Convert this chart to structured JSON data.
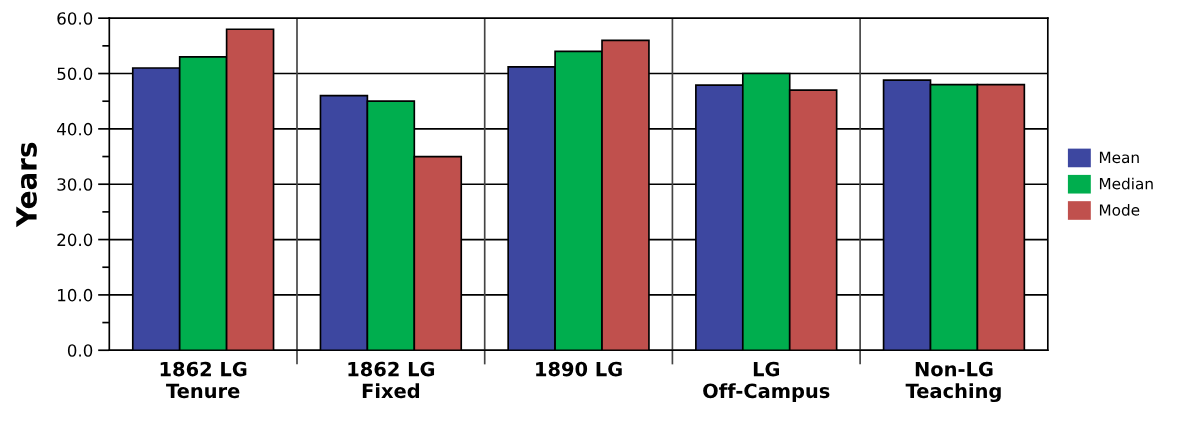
{
  "chart_data": {
    "type": "bar",
    "ylabel": "Years",
    "categories": [
      "1862 LG\nTenure",
      "1862 LG\nFixed",
      "1890 LG",
      "LG\nOff-Campus",
      "Non-LG\nTeaching"
    ],
    "series": [
      {
        "name": "Mean",
        "color": "#3d47a0",
        "values": [
          51.0,
          46.0,
          51.2,
          47.9,
          48.8
        ]
      },
      {
        "name": "Median",
        "color": "#00ae4e",
        "values": [
          53.0,
          45.0,
          54.0,
          50.0,
          48.0
        ]
      },
      {
        "name": "Mode",
        "color": "#c0504d",
        "values": [
          58.0,
          35.0,
          56.0,
          47.0,
          48.0
        ]
      }
    ],
    "ylim": [
      0,
      60
    ],
    "yticks": [
      {
        "value": 0,
        "label": "0.0"
      },
      {
        "value": 10,
        "label": "10.0"
      },
      {
        "value": 20,
        "label": "20.0"
      },
      {
        "value": 30,
        "label": "30.0"
      },
      {
        "value": 40,
        "label": "40.0"
      },
      {
        "value": 50,
        "label": "50.0"
      },
      {
        "value": 60,
        "label": "60.0"
      }
    ],
    "grid": true,
    "legend": "right"
  }
}
